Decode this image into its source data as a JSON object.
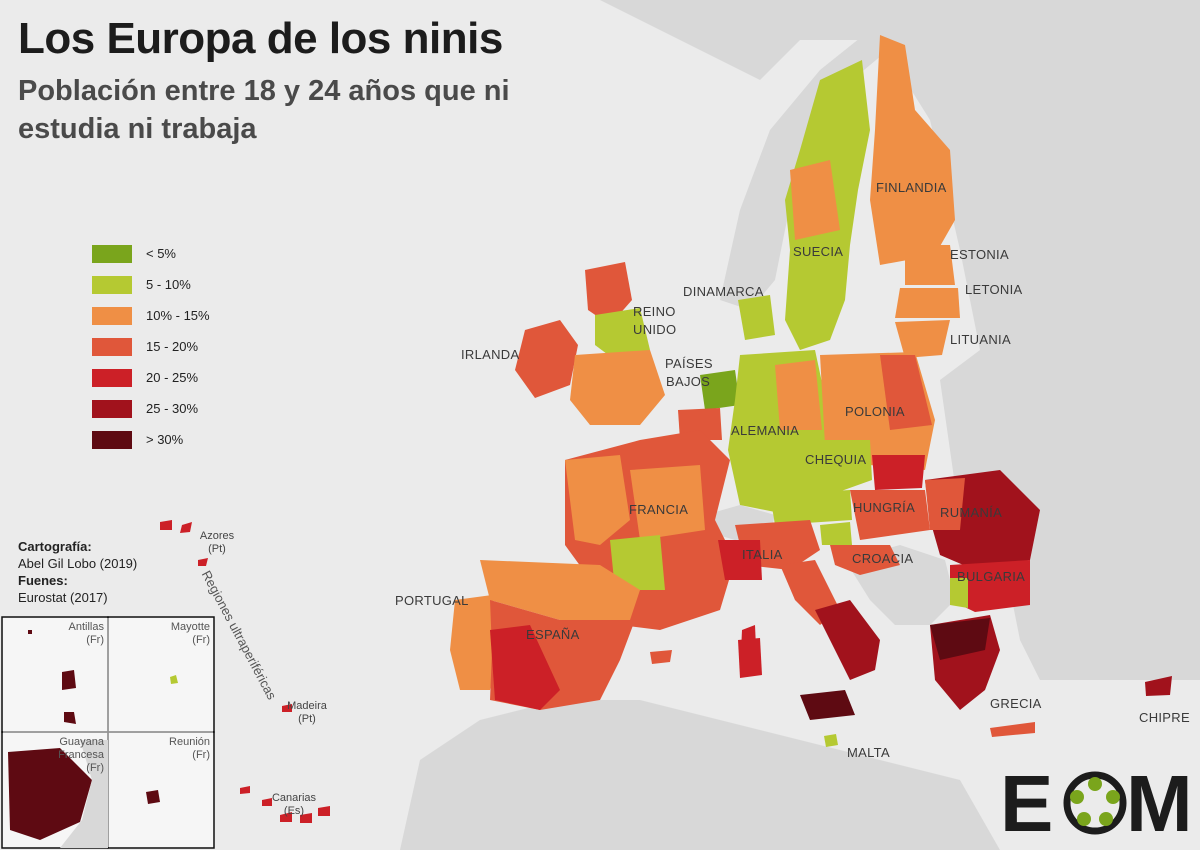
{
  "title": "Los Europa de los ninis",
  "subtitle": "Población entre 18 y 24 años que ni estudia ni trabaja",
  "legend": [
    {
      "label": "< 5%",
      "color": "#7aa51c"
    },
    {
      "label": "5 - 10%",
      "color": "#b5c932"
    },
    {
      "label": "10% - 15%",
      "color": "#ef8f45"
    },
    {
      "label": "15 - 20%",
      "color": "#e0573a"
    },
    {
      "label": "20 - 25%",
      "color": "#cc2027"
    },
    {
      "label": "25 - 30%",
      "color": "#a1121c"
    },
    {
      "label": "> 30%",
      "color": "#5e0a12"
    }
  ],
  "credits": {
    "cartography_label": "Cartografía:",
    "cartography_value": "Abel Gil Lobo (2019)",
    "sources_label": "Fuenes:",
    "sources_value": "Eurostat (2017)"
  },
  "countries": {
    "finlandia": "FINLANDIA",
    "suecia": "SUECIA",
    "estonia": "ESTONIA",
    "letonia": "LETONIA",
    "lituania": "LITUANIA",
    "dinamarca": "DINAMARCA",
    "reino_unido_1": "REINO",
    "reino_unido_2": "UNIDO",
    "irlanda": "IRLANDA",
    "paises_bajos_1": "PAÍSES",
    "paises_bajos_2": "BAJOS",
    "alemania": "ALEMANIA",
    "polonia": "POLONIA",
    "chequia": "CHEQUIA",
    "hungria": "HUNGRÍA",
    "rumania": "RUMANÍA",
    "bulgaria": "BULGARIA",
    "croacia": "CROACIA",
    "francia": "FRANCIA",
    "italia": "ITALIA",
    "portugal": "PORTUGAL",
    "espana": "ESPAÑA",
    "grecia": "GRECIA",
    "malta": "MALTA",
    "chipre": "CHIPRE"
  },
  "outermost": {
    "heading": "Regiones ultraperiféricas",
    "azores_1": "Azores",
    "azores_2": "(Pt)",
    "madeira_1": "Madeira",
    "madeira_2": "(Pt)",
    "canarias_1": "Canarias",
    "canarias_2": "(Es)"
  },
  "insets": {
    "antillas_1": "Antillas",
    "antillas_2": "(Fr)",
    "mayotte_1": "Mayotte",
    "mayotte_2": "(Fr)",
    "guayana_1": "Guayana",
    "guayana_2": "Francesa",
    "guayana_3": "(Fr)",
    "reunion_1": "Reunión",
    "reunion_2": "(Fr)"
  },
  "logo": {
    "text_left": "E",
    "text_right": "M"
  }
}
